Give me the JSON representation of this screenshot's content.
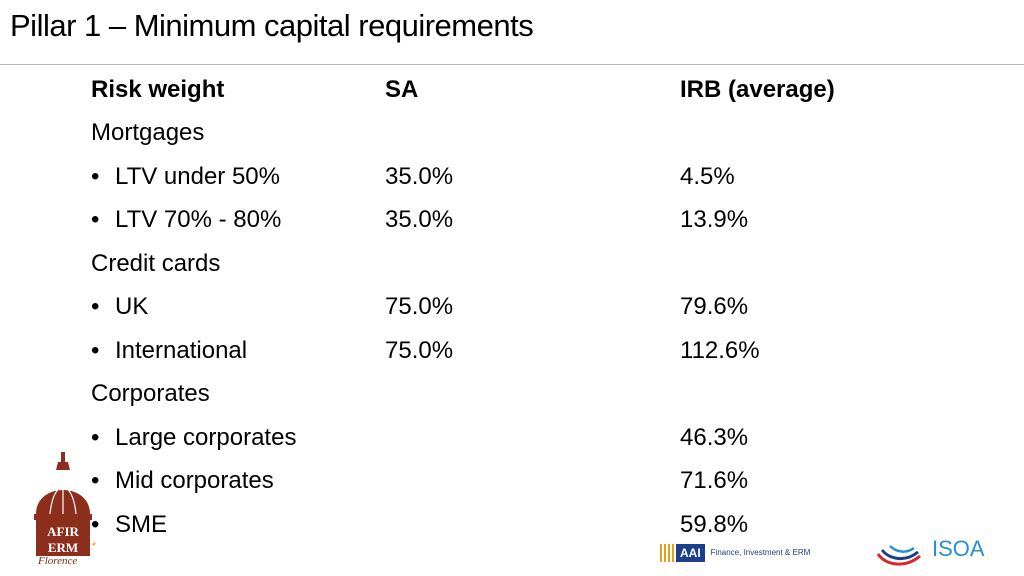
{
  "title": "Pillar 1 – Minimum capital requirements",
  "table": {
    "headers": [
      "Risk weight",
      "SA",
      "IRB (average)"
    ],
    "rows": [
      {
        "label": "Mortgages",
        "bullet": false,
        "sa": "",
        "irb": ""
      },
      {
        "label": "LTV under 50%",
        "bullet": true,
        "sa": "35.0%",
        "irb": "4.5%"
      },
      {
        "label": "LTV 70% - 80%",
        "bullet": true,
        "sa": "35.0%",
        "irb": "13.9%"
      },
      {
        "label": "Credit cards",
        "bullet": false,
        "sa": "",
        "irb": ""
      },
      {
        "label": "UK",
        "bullet": true,
        "sa": "75.0%",
        "irb": "79.6%"
      },
      {
        "label": "International",
        "bullet": true,
        "sa": "75.0%",
        "irb": "112.6%"
      },
      {
        "label": "Corporates",
        "bullet": false,
        "sa": "",
        "irb": ""
      },
      {
        "label": "Large corporates",
        "bullet": true,
        "sa": "",
        "irb": "46.3%"
      },
      {
        "label": "Mid corporates",
        "bullet": true,
        "sa": "",
        "irb": "71.6%"
      },
      {
        "label": "SME",
        "bullet": true,
        "sa": "",
        "irb": "59.8%"
      }
    ]
  },
  "logos": {
    "left": {
      "name": "AFIR ERM Florence",
      "text_top": "AFIR",
      "text_bottom": "ERM",
      "caption": "Florence",
      "color": "#7a2a1a"
    },
    "middle": {
      "name": "AAI Finance, Investment & ERM",
      "mark": "AAI",
      "caption": "Finance, Investment & ERM",
      "color": "#1b3f8b"
    },
    "right": {
      "name": "ISOA",
      "text": "ISOA",
      "color": "#2a8fd0"
    }
  },
  "bullet_glyph": "•"
}
